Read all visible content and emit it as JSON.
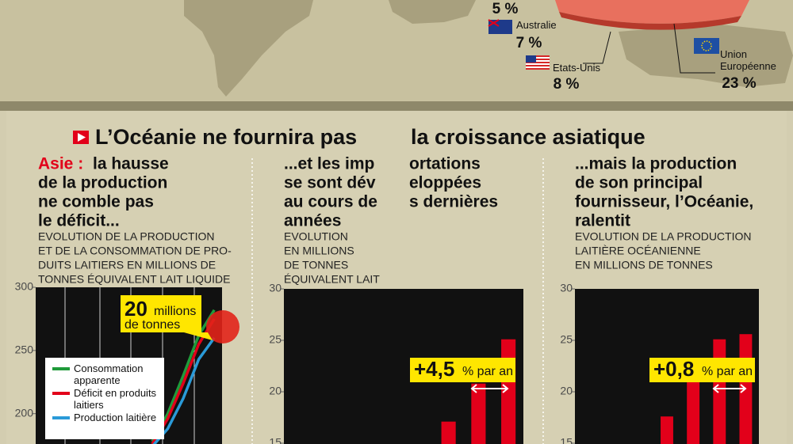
{
  "map": {
    "shares": [
      {
        "label": "5 %",
        "value": 5
      },
      {
        "name": "Australie",
        "label": "7 %",
        "value": 7
      },
      {
        "name": "Etats-Unis",
        "label": "8 %",
        "value": 8
      },
      {
        "name": "Union Européenne",
        "label": "23 %",
        "value": 23
      }
    ]
  },
  "title": [
    "L’Océanie ne fournira pas",
    "la croissance asiatique"
  ],
  "panels": [
    {
      "heading_accent": "Asie :",
      "heading": [
        "la hausse",
        "de la production",
        "ne comble pas",
        "le déficit..."
      ],
      "subtitle": [
        "EVOLUTION DE LA PRODUCTION",
        "ET DE LA CONSOMMATION DE PRO-",
        "DUITS LAITIERS EN MILLIONS DE",
        "TONNES ÉQUIVALENT LAIT LIQUIDE"
      ],
      "chart": {
        "type": "line",
        "ylim": [
          176,
          300
        ],
        "yticks": [
          200,
          250,
          300
        ],
        "categories": [
          null,
          null,
          null,
          null,
          null,
          null,
          null,
          null,
          null,
          null,
          null,
          null
        ],
        "series": [
          {
            "name": "Consommation apparente",
            "color": "#1f9a3a",
            "values": [
              null,
              null,
              null,
              null,
              null,
              null,
              null,
              178,
              200,
              230,
              262,
              282
            ]
          },
          {
            "name": "Déficit en produits laitiers",
            "color": "#e2001a",
            "values": [
              null,
              null,
              null,
              null,
              null,
              null,
              null,
              176,
              196,
              224,
              255,
              275
            ]
          },
          {
            "name": "Production laitière",
            "color": "#2a9ad8",
            "values": [
              null,
              null,
              null,
              null,
              null,
              null,
              null,
              174,
              188,
              212,
              243,
              260
            ]
          }
        ],
        "callout": [
          "20",
          "millions",
          "de tonnes"
        ]
      }
    },
    {
      "heading": [
        "...et les imp",
        "ortations",
        "se sont dév",
        "eloppées",
        "au cours de",
        "s dernières",
        "années"
      ],
      "subtitle": [
        "EVOLUTION",
        "EN MILLIONS",
        "DE TONNES",
        "ÉQUIVALENT LAIT"
      ],
      "chart": {
        "type": "bar",
        "ylim": [
          15,
          30
        ],
        "yticks": [
          15,
          20,
          25,
          30
        ],
        "color": "#e2001a",
        "categories": [
          null,
          null,
          null,
          null,
          null,
          null,
          null,
          null
        ],
        "values": [
          null,
          null,
          null,
          null,
          null,
          17.1,
          20.8,
          25.1
        ],
        "callout": [
          "+4,5",
          "% par an"
        ]
      }
    },
    {
      "heading": [
        "...mais la production",
        "de son principal",
        "fournisseur, l’Océanie,",
        "ralentit"
      ],
      "subtitle": [
        "EVOLUTION DE LA PRODUCTION",
        "LAITIÈRE OCÉANIENNE",
        "EN MILLIONS DE TONNES"
      ],
      "chart": {
        "type": "bar",
        "ylim": [
          15,
          30
        ],
        "yticks": [
          15,
          20,
          25,
          30
        ],
        "color": "#e2001a",
        "categories": [
          null,
          null,
          null,
          null,
          null,
          null,
          null
        ],
        "values": [
          null,
          null,
          null,
          17.6,
          21.3,
          25.1,
          25.6
        ],
        "callout": [
          "+0,8",
          "% par an"
        ]
      }
    }
  ]
}
